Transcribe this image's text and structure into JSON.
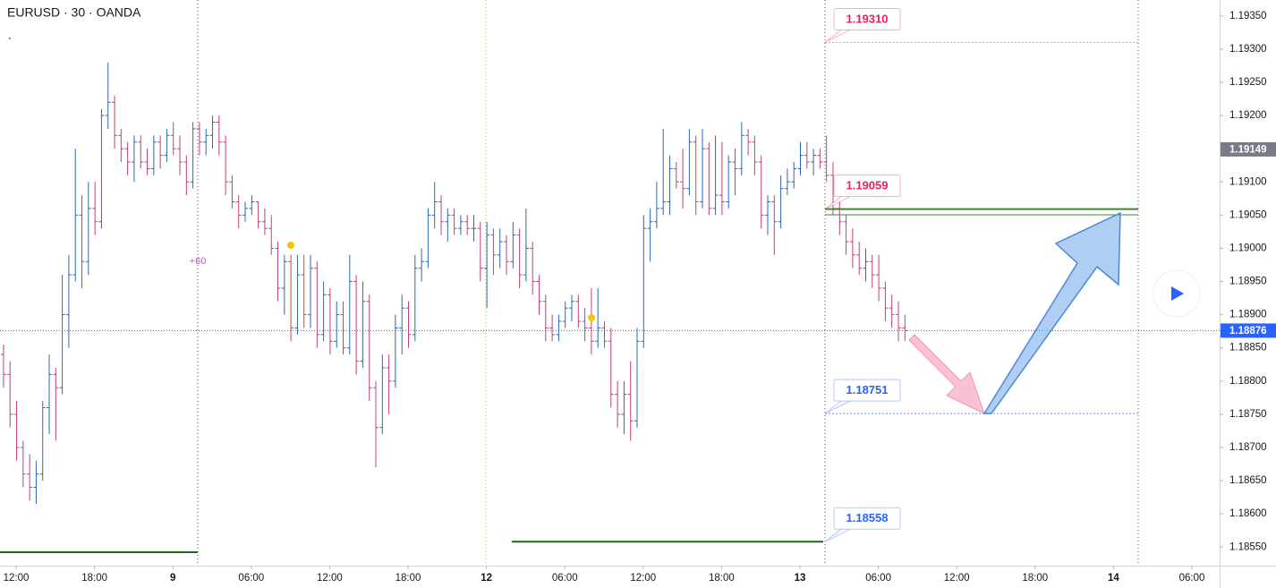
{
  "chart_data": {
    "type": "ohlc",
    "title": "EURUSD · 30 · OANDA",
    "subtitle": ".",
    "annotation": "+60",
    "up_color": "#2b68b4",
    "down_color": "#bf3f7c",
    "grid": false,
    "xlim": [
      -2.47,
      184.25
    ],
    "ylim": [
      1.18522,
      1.19374
    ],
    "xticks": [
      {
        "value": 0,
        "label": "12:00"
      },
      {
        "value": 12,
        "label": "18:00"
      },
      {
        "value": 24,
        "label": "9"
      },
      {
        "value": 36,
        "label": "06:00"
      },
      {
        "value": 48,
        "label": "12:00"
      },
      {
        "value": 60,
        "label": "18:00"
      },
      {
        "value": 72,
        "label": "12"
      },
      {
        "value": 84,
        "label": "06:00"
      },
      {
        "value": 96,
        "label": "12:00"
      },
      {
        "value": 108,
        "label": "18:00"
      },
      {
        "value": 120,
        "label": "13"
      },
      {
        "value": 132,
        "label": "06:00"
      },
      {
        "value": 144,
        "label": "12:00"
      },
      {
        "value": 156,
        "label": "18:00"
      },
      {
        "value": 168,
        "label": "14"
      },
      {
        "value": 180,
        "label": "06:00"
      }
    ],
    "yticks": [
      {
        "value": 1.1935,
        "label": "1.19350"
      },
      {
        "value": 1.193,
        "label": "1.19300"
      },
      {
        "value": 1.1925,
        "label": "1.19250"
      },
      {
        "value": 1.192,
        "label": "1.19200"
      },
      {
        "value": 1.1915,
        "label": "1.19150"
      },
      {
        "value": 1.191,
        "label": "1.19100"
      },
      {
        "value": 1.1905,
        "label": "1.19050"
      },
      {
        "value": 1.19,
        "label": "1.19000"
      },
      {
        "value": 1.1895,
        "label": "1.18950"
      },
      {
        "value": 1.189,
        "label": "1.18900"
      },
      {
        "value": 1.1885,
        "label": "1.18850"
      },
      {
        "value": 1.188,
        "label": "1.18800"
      },
      {
        "value": 1.1875,
        "label": "1.18750"
      },
      {
        "value": 1.187,
        "label": "1.18700"
      },
      {
        "value": 1.1865,
        "label": "1.18650"
      },
      {
        "value": 1.186,
        "label": "1.18600"
      },
      {
        "value": 1.1855,
        "label": "1.18550"
      }
    ],
    "price_labels": [
      {
        "value": 1.19149,
        "label": "1.19149",
        "color": "#787b86"
      },
      {
        "value": 1.18876,
        "label": "1.18876",
        "color": "#2962ff"
      }
    ],
    "price_lines": [
      {
        "value": 1.1931,
        "label": "1.19310",
        "text_color": "#e91e63",
        "line_color": "#f48fb1",
        "dashed": true
      },
      {
        "value": 1.19059,
        "label": "1.19059",
        "text_color": "#e91e63",
        "line_color": "#3a8a2e",
        "dashed": false
      },
      {
        "value": 1.18751,
        "label": "1.18751",
        "text_color": "#2962ff",
        "line_color": "#7e8fd6",
        "dashed": true
      },
      {
        "value": 1.18558,
        "label": "1.18558",
        "text_color": "#2962ff",
        "line_color": "#1b6b12",
        "dashed": false
      }
    ],
    "x": [
      -2,
      -1,
      0,
      1,
      2,
      3,
      4,
      5,
      6,
      7,
      8,
      9,
      10,
      11,
      12,
      13,
      14,
      15,
      16,
      17,
      18,
      19,
      20,
      21,
      22,
      23,
      24,
      25,
      26,
      27,
      28,
      29,
      30,
      31,
      32,
      33,
      34,
      35,
      36,
      37,
      38,
      39,
      40,
      41,
      42,
      43,
      44,
      45,
      46,
      47,
      48,
      49,
      50,
      51,
      52,
      53,
      54,
      55,
      56,
      57,
      58,
      59,
      60,
      61,
      62,
      63,
      64,
      65,
      66,
      67,
      68,
      69,
      70,
      71,
      72,
      73,
      74,
      75,
      76,
      77,
      78,
      79,
      80,
      81,
      82,
      83,
      84,
      85,
      86,
      87,
      88,
      89,
      90,
      91,
      92,
      93,
      94,
      95,
      96,
      97,
      98,
      99,
      100,
      101,
      102,
      103,
      104,
      105,
      106,
      107,
      108,
      109,
      110,
      111,
      112,
      113,
      114,
      115,
      116,
      117,
      118,
      119,
      120,
      121,
      122,
      123,
      124,
      125,
      126,
      127,
      128,
      129,
      130,
      131,
      132,
      133,
      134,
      135,
      136
    ],
    "bars": [
      [
        1.1884,
        1.18855,
        1.1879,
        1.1881
      ],
      [
        1.1881,
        1.1883,
        1.1873,
        1.1875
      ],
      [
        1.1875,
        1.1877,
        1.1868,
        1.187
      ],
      [
        1.187,
        1.1871,
        1.1864,
        1.1866
      ],
      [
        1.1866,
        1.1869,
        1.1862,
        1.1864
      ],
      [
        1.1864,
        1.1868,
        1.18615,
        1.1866
      ],
      [
        1.1866,
        1.1877,
        1.1865,
        1.1876
      ],
      [
        1.1876,
        1.1884,
        1.1872,
        1.1881
      ],
      [
        1.1881,
        1.1882,
        1.1871,
        1.1879
      ],
      [
        1.1879,
        1.1896,
        1.1878,
        1.189
      ],
      [
        1.189,
        1.1899,
        1.1885,
        1.1896
      ],
      [
        1.1896,
        1.1915,
        1.1895,
        1.1905
      ],
      [
        1.1905,
        1.1908,
        1.1894,
        1.1898
      ],
      [
        1.1898,
        1.191,
        1.1896,
        1.1906
      ],
      [
        1.1906,
        1.191,
        1.1902,
        1.1904
      ],
      [
        1.1904,
        1.1921,
        1.1903,
        1.192
      ],
      [
        1.192,
        1.1928,
        1.1918,
        1.1922
      ],
      [
        1.1922,
        1.1923,
        1.1915,
        1.1917
      ],
      [
        1.1917,
        1.1918,
        1.1913,
        1.1915
      ],
      [
        1.1915,
        1.1916,
        1.1911,
        1.1913
      ],
      [
        1.1913,
        1.1917,
        1.191,
        1.1916
      ],
      [
        1.1916,
        1.1917,
        1.1912,
        1.1913
      ],
      [
        1.1913,
        1.1915,
        1.1911,
        1.1912
      ],
      [
        1.1912,
        1.1917,
        1.1911,
        1.1916
      ],
      [
        1.1916,
        1.1917,
        1.1912,
        1.1914
      ],
      [
        1.1914,
        1.1918,
        1.1913,
        1.1917
      ],
      [
        1.1917,
        1.1919,
        1.1914,
        1.1915
      ],
      [
        1.1915,
        1.1917,
        1.1911,
        1.1913
      ],
      [
        1.1913,
        1.1914,
        1.1908,
        1.191
      ],
      [
        1.191,
        1.1919,
        1.1909,
        1.1918
      ],
      [
        1.1918,
        1.1919,
        1.1914,
        1.1916
      ],
      [
        1.1916,
        1.1918,
        1.1914,
        1.1917
      ],
      [
        1.1917,
        1.192,
        1.1915,
        1.1919
      ],
      [
        1.1919,
        1.192,
        1.1914,
        1.1916
      ],
      [
        1.1916,
        1.1917,
        1.1908,
        1.191
      ],
      [
        1.191,
        1.1911,
        1.1906,
        1.1907
      ],
      [
        1.1907,
        1.1908,
        1.1903,
        1.1905
      ],
      [
        1.1905,
        1.1907,
        1.1904,
        1.1906
      ],
      [
        1.1906,
        1.1908,
        1.1905,
        1.1907
      ],
      [
        1.1907,
        1.1907,
        1.1903,
        1.1904
      ],
      [
        1.1904,
        1.1906,
        1.1902,
        1.1903
      ],
      [
        1.1903,
        1.1905,
        1.1899,
        1.19
      ],
      [
        1.19,
        1.1901,
        1.1892,
        1.1894
      ],
      [
        1.1894,
        1.1899,
        1.189,
        1.1898
      ],
      [
        1.1898,
        1.1899,
        1.1886,
        1.1888
      ],
      [
        1.1888,
        1.1899,
        1.1887,
        1.1896
      ],
      [
        1.1896,
        1.1899,
        1.1888,
        1.189
      ],
      [
        1.189,
        1.1899,
        1.1888,
        1.1897
      ],
      [
        1.1897,
        1.1898,
        1.1885,
        1.1887
      ],
      [
        1.1887,
        1.1895,
        1.1886,
        1.1893
      ],
      [
        1.1893,
        1.1894,
        1.1884,
        1.1886
      ],
      [
        1.1886,
        1.1892,
        1.1885,
        1.189
      ],
      [
        1.189,
        1.1892,
        1.1884,
        1.1885
      ],
      [
        1.1885,
        1.1899,
        1.1884,
        1.1895
      ],
      [
        1.1895,
        1.1896,
        1.1881,
        1.1883
      ],
      [
        1.1883,
        1.1895,
        1.1882,
        1.1892
      ],
      [
        1.1892,
        1.1893,
        1.1877,
        1.1879
      ],
      [
        1.1879,
        1.188,
        1.1867,
        1.1873
      ],
      [
        1.1873,
        1.1884,
        1.1872,
        1.1882
      ],
      [
        1.1882,
        1.1884,
        1.1875,
        1.188
      ],
      [
        1.188,
        1.189,
        1.1879,
        1.1888
      ],
      [
        1.1888,
        1.1893,
        1.1884,
        1.1891
      ],
      [
        1.1891,
        1.1892,
        1.1885,
        1.1887
      ],
      [
        1.1887,
        1.1899,
        1.1886,
        1.1897
      ],
      [
        1.1897,
        1.19,
        1.1895,
        1.1898
      ],
      [
        1.1898,
        1.1906,
        1.1897,
        1.1905
      ],
      [
        1.1905,
        1.191,
        1.1903,
        1.1907
      ],
      [
        1.1907,
        1.1908,
        1.1902,
        1.1904
      ],
      [
        1.1904,
        1.1906,
        1.1901,
        1.1905
      ],
      [
        1.1905,
        1.1906,
        1.1902,
        1.1903
      ],
      [
        1.1903,
        1.1905,
        1.1902,
        1.1904
      ],
      [
        1.1904,
        1.1905,
        1.1902,
        1.1903
      ],
      [
        1.1903,
        1.1905,
        1.1901,
        1.1903
      ],
      [
        1.1903,
        1.1904,
        1.1895,
        1.1897
      ],
      [
        1.1897,
        1.1904,
        1.1891,
        1.1902
      ],
      [
        1.1902,
        1.1903,
        1.1896,
        1.1899
      ],
      [
        1.1899,
        1.1903,
        1.1897,
        1.1901
      ],
      [
        1.1901,
        1.1902,
        1.1896,
        1.1898
      ],
      [
        1.1898,
        1.1904,
        1.1897,
        1.1902
      ],
      [
        1.1902,
        1.1903,
        1.1894,
        1.1896
      ],
      [
        1.1896,
        1.1906,
        1.1895,
        1.19
      ],
      [
        1.19,
        1.1901,
        1.1893,
        1.1895
      ],
      [
        1.1895,
        1.1896,
        1.189,
        1.1892
      ],
      [
        1.1892,
        1.1893,
        1.1886,
        1.1888
      ],
      [
        1.1888,
        1.189,
        1.1886,
        1.1887
      ],
      [
        1.1887,
        1.189,
        1.1886,
        1.1889
      ],
      [
        1.1889,
        1.1892,
        1.1888,
        1.1891
      ],
      [
        1.1891,
        1.1893,
        1.1889,
        1.1892
      ],
      [
        1.1892,
        1.1893,
        1.1888,
        1.1889
      ],
      [
        1.1889,
        1.1891,
        1.1886,
        1.1888
      ],
      [
        1.1888,
        1.1894,
        1.1884,
        1.1886
      ],
      [
        1.1886,
        1.1894,
        1.1885,
        1.1888
      ],
      [
        1.1888,
        1.1889,
        1.1885,
        1.1886
      ],
      [
        1.1886,
        1.1888,
        1.1876,
        1.1878
      ],
      [
        1.1878,
        1.188,
        1.1873,
        1.1875
      ],
      [
        1.1875,
        1.188,
        1.1872,
        1.1878
      ],
      [
        1.1878,
        1.1883,
        1.1871,
        1.1874
      ],
      [
        1.1874,
        1.1888,
        1.1873,
        1.1886
      ],
      [
        1.1886,
        1.1905,
        1.1885,
        1.1903
      ],
      [
        1.1903,
        1.1906,
        1.1898,
        1.1904
      ],
      [
        1.1904,
        1.191,
        1.1903,
        1.1906
      ],
      [
        1.1906,
        1.1918,
        1.1905,
        1.1907
      ],
      [
        1.1907,
        1.1914,
        1.1905,
        1.1912
      ],
      [
        1.1912,
        1.1913,
        1.1909,
        1.191
      ],
      [
        1.191,
        1.1915,
        1.1906,
        1.1909
      ],
      [
        1.1909,
        1.1918,
        1.1908,
        1.1916
      ],
      [
        1.1916,
        1.1917,
        1.1905,
        1.1907
      ],
      [
        1.1907,
        1.1918,
        1.1906,
        1.1915
      ],
      [
        1.1915,
        1.1916,
        1.1905,
        1.1906
      ],
      [
        1.1906,
        1.1917,
        1.1905,
        1.1908
      ],
      [
        1.1908,
        1.1916,
        1.1905,
        1.1907
      ],
      [
        1.1907,
        1.1914,
        1.1906,
        1.1913
      ],
      [
        1.1913,
        1.1915,
        1.1908,
        1.1912
      ],
      [
        1.1912,
        1.1919,
        1.1911,
        1.1917
      ],
      [
        1.1917,
        1.1918,
        1.1914,
        1.1916
      ],
      [
        1.1916,
        1.1917,
        1.1911,
        1.1913
      ],
      [
        1.1913,
        1.1914,
        1.1903,
        1.1905
      ],
      [
        1.1905,
        1.1908,
        1.1902,
        1.1907
      ],
      [
        1.1907,
        1.1908,
        1.1899,
        1.1904
      ],
      [
        1.1904,
        1.1911,
        1.1903,
        1.1909
      ],
      [
        1.1909,
        1.1912,
        1.1908,
        1.191
      ],
      [
        1.191,
        1.1913,
        1.1909,
        1.1912
      ],
      [
        1.1912,
        1.1916,
        1.1911,
        1.1914
      ],
      [
        1.1914,
        1.1916,
        1.1912,
        1.1913
      ],
      [
        1.1913,
        1.1915,
        1.1911,
        1.1914
      ],
      [
        1.1914,
        1.1915,
        1.1912,
        1.1913
      ],
      [
        1.1913,
        1.1917,
        1.191,
        1.1911
      ],
      [
        1.1911,
        1.1913,
        1.1905,
        1.1906
      ],
      [
        1.1906,
        1.1907,
        1.1902,
        1.1904
      ],
      [
        1.1904,
        1.1905,
        1.1899,
        1.1901
      ],
      [
        1.1901,
        1.1903,
        1.1897,
        1.1899
      ],
      [
        1.1899,
        1.1901,
        1.1896,
        1.1897
      ],
      [
        1.1897,
        1.19,
        1.1895,
        1.1898
      ],
      [
        1.1898,
        1.1899,
        1.1894,
        1.1896
      ],
      [
        1.1896,
        1.1899,
        1.1892,
        1.1894
      ],
      [
        1.1894,
        1.1895,
        1.1889,
        1.1891
      ],
      [
        1.1891,
        1.1893,
        1.1888,
        1.189
      ],
      [
        1.189,
        1.1892,
        1.1886,
        1.1888
      ],
      [
        1.1888,
        1.189,
        1.1886,
        1.18876
      ]
    ]
  }
}
